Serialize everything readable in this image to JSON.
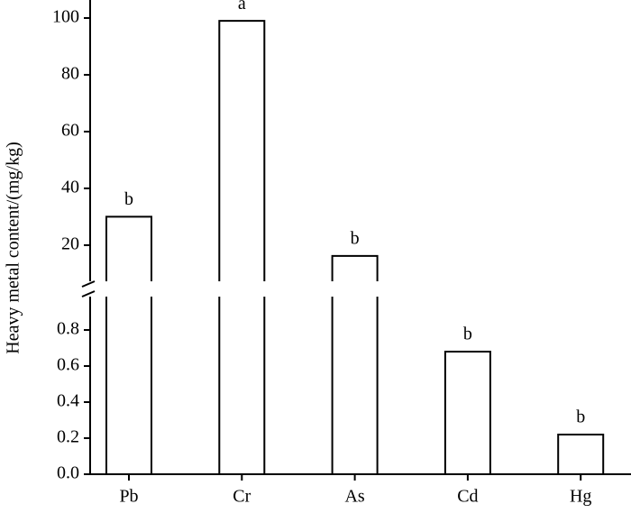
{
  "chart_data": {
    "type": "bar",
    "y_label": "Heavy metal content/(mg/kg)",
    "categories": [
      "Pb",
      "Cr",
      "As",
      "Cd",
      "Hg"
    ],
    "values": [
      30,
      99,
      16.2,
      0.68,
      0.22
    ],
    "significance_letters": [
      "b",
      "a",
      "b",
      "b",
      "b"
    ],
    "color": "#ffffff",
    "axis_break": true,
    "segments": [
      {
        "ylim": [
          0,
          1
        ],
        "yticks": [
          {
            "value": 0,
            "label": "0.0"
          },
          0.2,
          0.4,
          0.6,
          0.8
        ]
      },
      {
        "ylim": [
          6,
          100
        ],
        "yticks": [
          20,
          40,
          60,
          80,
          100
        ]
      }
    ]
  }
}
